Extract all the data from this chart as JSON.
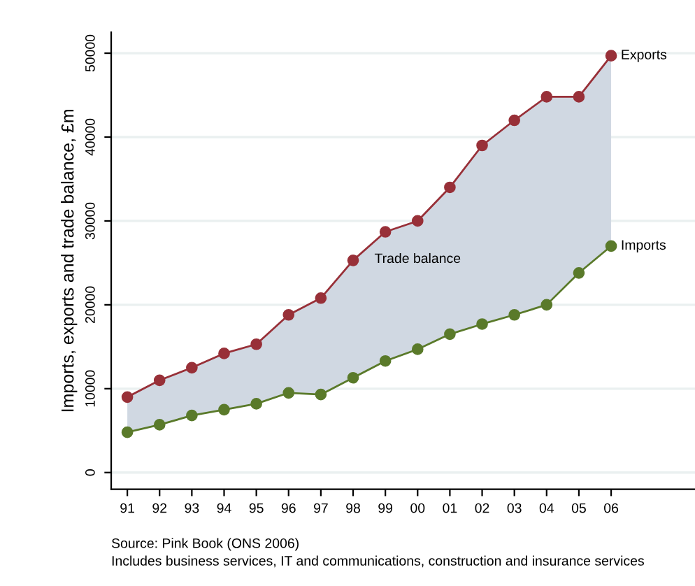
{
  "chart_data": {
    "type": "line",
    "ylabel": "Imports, exports and trade balance, £m",
    "categories": [
      "91",
      "92",
      "93",
      "94",
      "95",
      "96",
      "97",
      "98",
      "99",
      "00",
      "01",
      "02",
      "03",
      "04",
      "05",
      "06"
    ],
    "series": [
      {
        "name": "Exports",
        "color": "#983038",
        "values": [
          9000,
          11000,
          12500,
          14200,
          15300,
          18800,
          20800,
          25300,
          28700,
          30000,
          34000,
          39000,
          42000,
          44800,
          44800,
          49700
        ],
        "lower": [
          4800,
          5700,
          6800,
          7500,
          8200,
          9500,
          9300,
          11300,
          13300,
          14700,
          16500,
          17700,
          18800,
          20000,
          23800,
          27000
        ],
        "upper": [
          9000,
          11000,
          12500,
          14200,
          15300,
          18800,
          20800,
          25300,
          28700,
          30000,
          34000,
          39000,
          42000,
          44800,
          44800,
          49700
        ]
      },
      {
        "name": "Imports",
        "color": "#5a7a2a",
        "values": [
          4800,
          5700,
          6800,
          7500,
          8200,
          9500,
          9300,
          11300,
          13300,
          14700,
          16500,
          17700,
          18800,
          20000,
          23800,
          27000
        ]
      }
    ],
    "ylim": [
      -2000,
      52500
    ],
    "yticks": [
      0,
      10000,
      20000,
      30000,
      40000,
      50000
    ],
    "grid": "y",
    "marker": "circle",
    "line_style": "solid",
    "legend": false,
    "annotations": [
      "Trade balance",
      "Source: Pink Book (ONS 2006)",
      "Includes business services, IT and communications, construction and insurance services"
    ]
  }
}
